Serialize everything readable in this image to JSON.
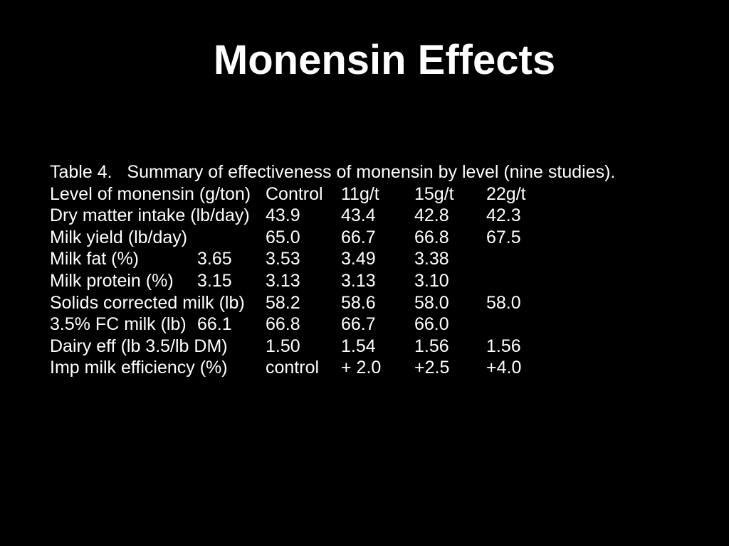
{
  "slide": {
    "title": "Monensin Effects",
    "background_color": "#000000",
    "text_color": "#ffffff"
  },
  "table": {
    "caption": "Table 4.   Summary of effectiveness of monensin by level (nine studies).",
    "column_headers": [
      "Control",
      "11g/t",
      "15g/t",
      "22g/t"
    ],
    "rows": [
      {
        "label": "Level of monensin (g/ton)",
        "cells": [
          "Control",
          "11g/t",
          "15g/t",
          "22g/t"
        ]
      },
      {
        "label": "Dry matter intake (lb/day)",
        "cells": [
          "43.9",
          "43.4",
          "42.8",
          "42.3"
        ]
      },
      {
        "label": "Milk yield (lb/day)",
        "cells": [
          "65.0",
          "66.7",
          "66.8",
          "67.5"
        ]
      },
      {
        "label": "Milk fat (%)",
        "cells": [
          "3.65",
          "3.53",
          "3.49",
          "3.38"
        ]
      },
      {
        "label": "Milk protein (%)",
        "cells": [
          "3.15",
          "3.13",
          "3.13",
          "3.10"
        ]
      },
      {
        "label": "Solids corrected milk (lb)",
        "cells": [
          "58.2",
          "58.6",
          "58.0",
          "58.0"
        ]
      },
      {
        "label": "3.5% FC milk (lb)",
        "cells": [
          "66.1",
          "66.8",
          "66.7",
          "66.0"
        ]
      },
      {
        "label": "Dairy eff (lb 3.5/lb DM)",
        "cells": [
          "1.50",
          "1.54",
          "1.56",
          "1.56"
        ]
      },
      {
        "label": "Imp milk efficiency (%)",
        "cells": [
          "control",
          "+ 2.0",
          "+2.5",
          "+4.0"
        ]
      }
    ]
  }
}
